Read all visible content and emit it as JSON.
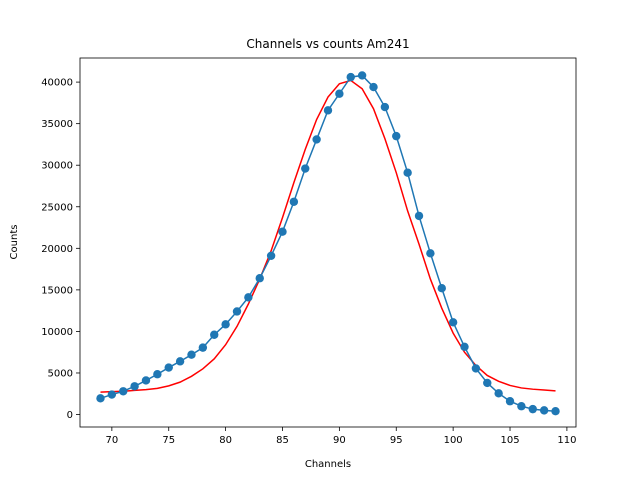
{
  "chart_data": {
    "type": "line",
    "title": "Channels vs counts Am241",
    "xlabel": "Channels",
    "ylabel": "Counts",
    "xlim": [
      67.2,
      110.8
    ],
    "ylim": [
      -1500,
      42900
    ],
    "xticks": [
      70,
      75,
      80,
      85,
      90,
      95,
      100,
      105,
      110
    ],
    "yticks": [
      0,
      5000,
      10000,
      15000,
      20000,
      25000,
      30000,
      35000,
      40000
    ],
    "grid": false,
    "series": [
      {
        "style": "line-markers",
        "color": "#1f77b4",
        "x": [
          69,
          70,
          71,
          72,
          73,
          74,
          75,
          76,
          77,
          78,
          79,
          80,
          81,
          82,
          83,
          84,
          85,
          86,
          87,
          88,
          89,
          90,
          91,
          92,
          93,
          94,
          95,
          96,
          97,
          98,
          99,
          100,
          101,
          102,
          103,
          104,
          105,
          106,
          107,
          108,
          109
        ],
        "y": [
          1950,
          2400,
          2800,
          3400,
          4100,
          4850,
          5650,
          6400,
          7200,
          8050,
          9600,
          10850,
          12400,
          14100,
          16400,
          19100,
          22000,
          25600,
          29600,
          33100,
          36600,
          38600,
          40600,
          40800,
          39400,
          37000,
          33500,
          29100,
          23900,
          19400,
          15200,
          11100,
          8150,
          5550,
          3800,
          2550,
          1600,
          1000,
          650,
          500,
          400
        ]
      },
      {
        "style": "line",
        "color": "#ff0000",
        "x": [
          69,
          70,
          71,
          72,
          73,
          74,
          75,
          76,
          77,
          78,
          79,
          80,
          81,
          82,
          83,
          84,
          85,
          86,
          87,
          88,
          89,
          90,
          91,
          92,
          93,
          94,
          95,
          96,
          97,
          98,
          99,
          100,
          101,
          102,
          103,
          104,
          105,
          106,
          107,
          108,
          109
        ],
        "y": [
          2700,
          2750,
          2800,
          2900,
          3000,
          3150,
          3450,
          3900,
          4600,
          5500,
          6700,
          8400,
          10600,
          13300,
          16300,
          19700,
          23700,
          27900,
          31900,
          35500,
          38200,
          39800,
          40200,
          39200,
          36800,
          33200,
          29100,
          24500,
          20500,
          16300,
          12800,
          9800,
          7500,
          5900,
          4700,
          4000,
          3500,
          3200,
          3050,
          2950,
          2850
        ]
      }
    ]
  }
}
